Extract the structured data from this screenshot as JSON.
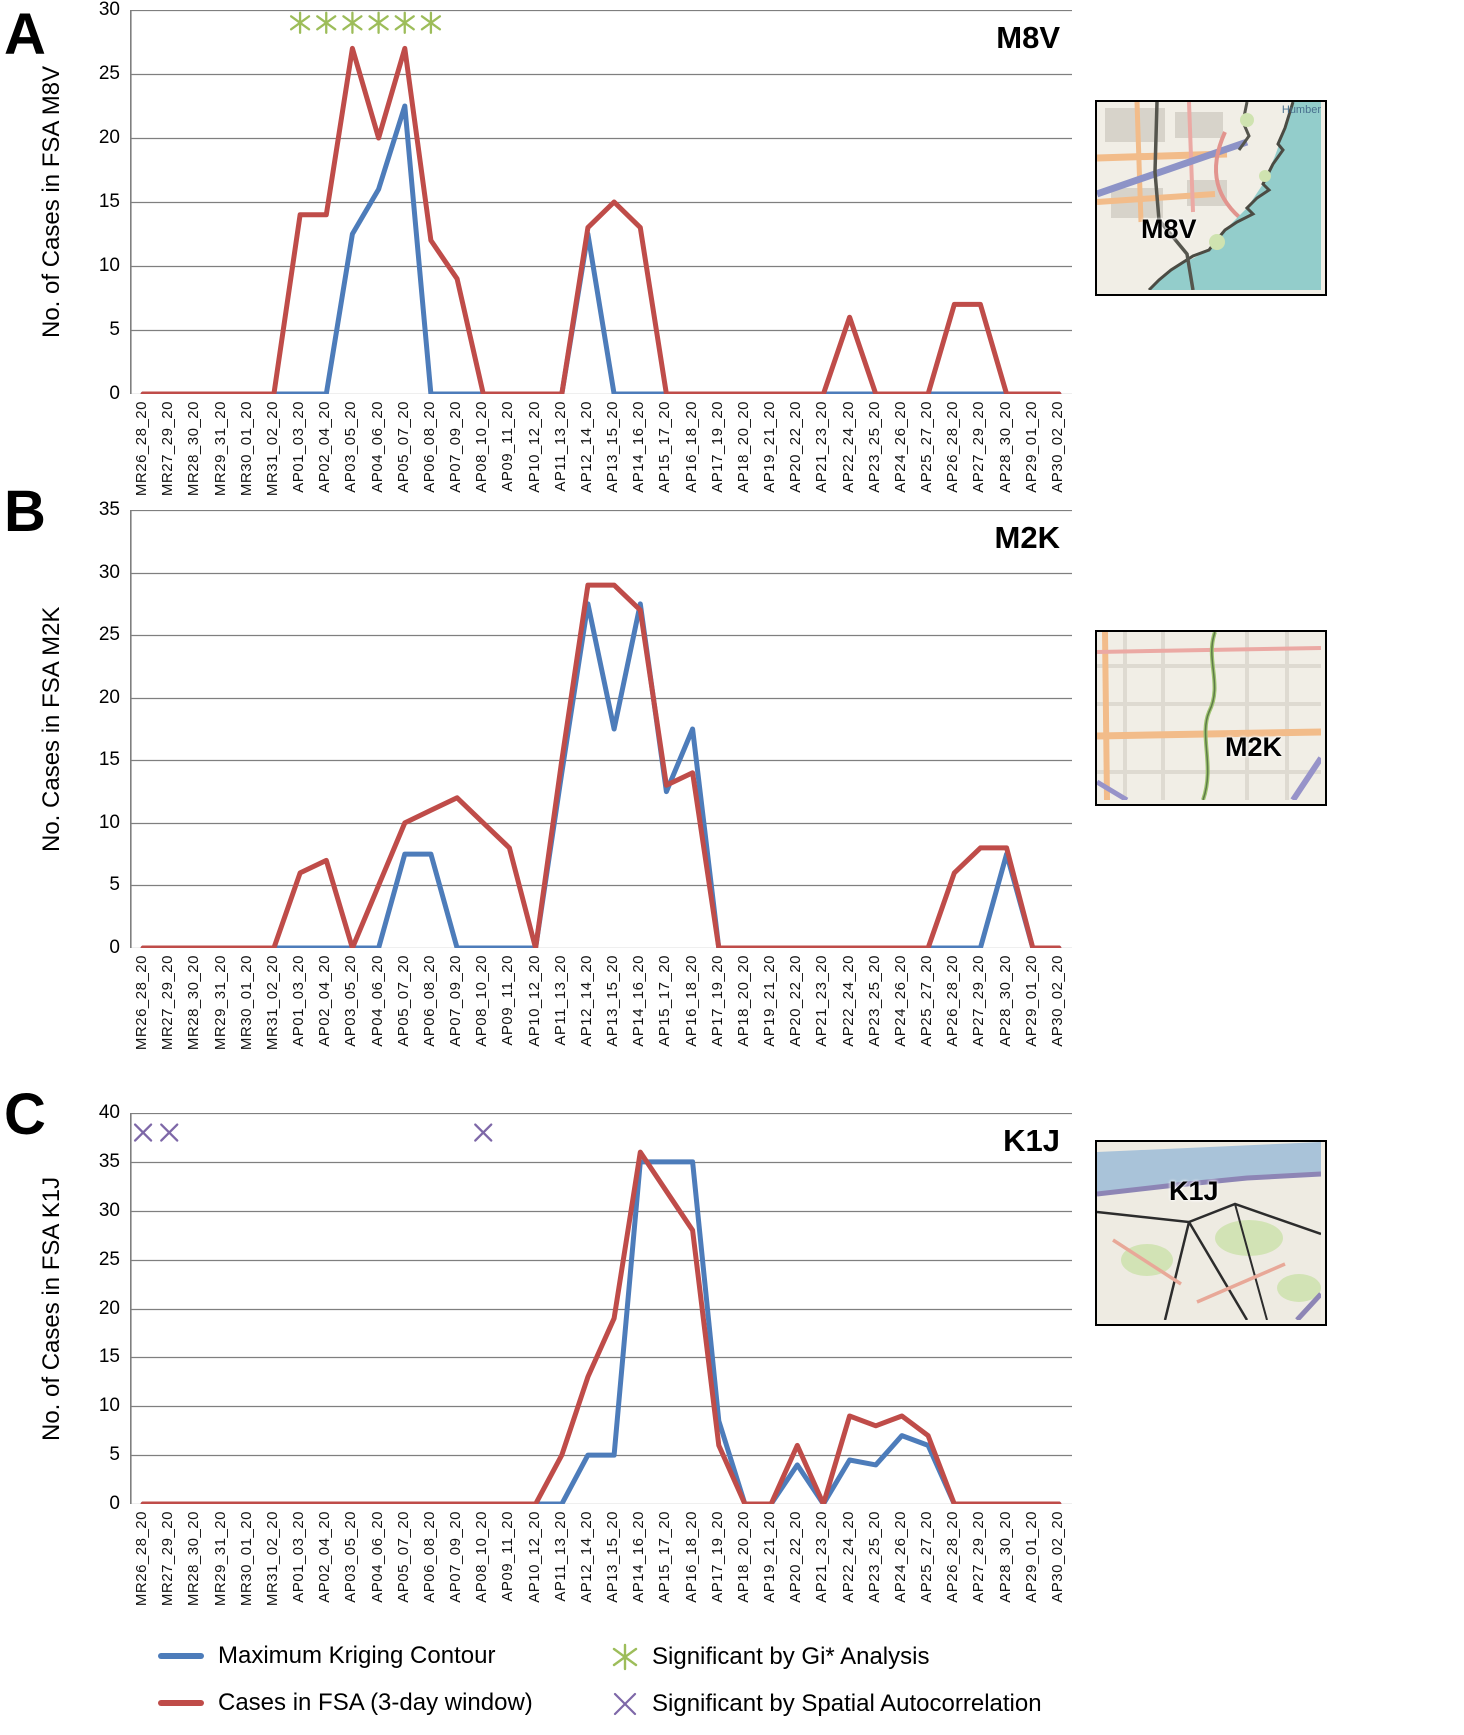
{
  "figure": {
    "panels": [
      {
        "letter": "A",
        "fsa_tag": "M8V",
        "ylabel": "No. of Cases in FSA M8V"
      },
      {
        "letter": "B",
        "fsa_tag": "M2K",
        "ylabel": "No. Cases in FSA M2K"
      },
      {
        "letter": "C",
        "fsa_tag": "K1J",
        "ylabel": "No. of Cases in FSA K1J"
      }
    ]
  },
  "colors": {
    "kriging_blue": "#4d7cba",
    "cases_red": "#bf4c49",
    "gi_star_green": "#9dbd5a",
    "spatial_x_purple": "#7e68a8",
    "gridline_gray": "#7f7f7f"
  },
  "legend": {
    "items": [
      {
        "swatch": "blue-line",
        "label": "Maximum Kriging Contour"
      },
      {
        "swatch": "gi-star",
        "label": "Significant by Gi* Analysis"
      },
      {
        "swatch": "red-line",
        "label": "Cases in FSA (3-day window)"
      },
      {
        "swatch": "x-mark",
        "label": "Significant by Spatial Autocorrelation"
      }
    ]
  },
  "maps": [
    {
      "label": "M8V",
      "water_label": "Humber"
    },
    {
      "label": "M2K",
      "water_label": ""
    },
    {
      "label": "K1J",
      "water_label": ""
    }
  ],
  "chart_data": [
    {
      "type": "line",
      "panel": "A",
      "title": "M8V",
      "ylabel": "No. of Cases in FSA M8V",
      "ylim": [
        0,
        30
      ],
      "ytick_step": 5,
      "grid": true,
      "categories": [
        "MR26_28_20",
        "MR27_29_20",
        "MR28_30_20",
        "MR29_31_20",
        "MR30_01_20",
        "MR31_02_20",
        "AP01_03_20",
        "AP02_04_20",
        "AP03_05_20",
        "AP04_06_20",
        "AP05_07_20",
        "AP06_08_20",
        "AP07_09_20",
        "AP08_10_20",
        "AP09_11_20",
        "AP10_12_20",
        "AP11_13_20",
        "AP12_14_20",
        "AP13_15_20",
        "AP14_16_20",
        "AP15_17_20",
        "AP16_18_20",
        "AP17_19_20",
        "AP18_20_20",
        "AP19_21_20",
        "AP20_22_20",
        "AP21_23_20",
        "AP22_24_20",
        "AP23_25_20",
        "AP24_26_20",
        "AP25_27_20",
        "AP26_28_20",
        "AP27_29_20",
        "AP28_30_20",
        "AP29_01_20",
        "AP30_02_20"
      ],
      "series": [
        {
          "name": "Maximum Kriging Contour",
          "color": "#4d7cba",
          "values": [
            0,
            0,
            0,
            0,
            0,
            0,
            0,
            0,
            12.5,
            16,
            22.5,
            0,
            0,
            0,
            0,
            0,
            0,
            12.5,
            0,
            0,
            0,
            0,
            0,
            0,
            0,
            0,
            0,
            0,
            0,
            0,
            0,
            0,
            0,
            0,
            0,
            0
          ]
        },
        {
          "name": "Cases in FSA (3-day window)",
          "color": "#bf4c49",
          "values": [
            0,
            0,
            0,
            0,
            0,
            0,
            14,
            14,
            27,
            20,
            27,
            12,
            9,
            0,
            0,
            0,
            0,
            13,
            15,
            13,
            0,
            0,
            0,
            0,
            0,
            0,
            0,
            6,
            0,
            0,
            0,
            7,
            7,
            0,
            0,
            0
          ]
        }
      ],
      "markers": [
        {
          "type": "gi-star",
          "meaning": "Significant by Gi* Analysis",
          "color": "#9dbd5a",
          "value": 29,
          "category_indices": [
            6,
            7,
            8,
            9,
            10,
            11
          ]
        }
      ]
    },
    {
      "type": "line",
      "panel": "B",
      "title": "M2K",
      "ylabel": "No. Cases in FSA M2K",
      "ylim": [
        0,
        35
      ],
      "ytick_step": 5,
      "grid": true,
      "categories": [
        "MR26_28_20",
        "MR27_29_20",
        "MR28_30_20",
        "MR29_31_20",
        "MR30_01_20",
        "MR31_02_20",
        "AP01_03_20",
        "AP02_04_20",
        "AP03_05_20",
        "AP04_06_20",
        "AP05_07_20",
        "AP06_08_20",
        "AP07_09_20",
        "AP08_10_20",
        "AP09_11_20",
        "AP10_12_20",
        "AP11_13_20",
        "AP12_14_20",
        "AP13_15_20",
        "AP14_16_20",
        "AP15_17_20",
        "AP16_18_20",
        "AP17_19_20",
        "AP18_20_20",
        "AP19_21_20",
        "AP20_22_20",
        "AP21_23_20",
        "AP22_24_20",
        "AP23_25_20",
        "AP24_26_20",
        "AP25_27_20",
        "AP26_28_20",
        "AP27_29_20",
        "AP28_30_20",
        "AP29_01_20",
        "AP30_02_20"
      ],
      "series": [
        {
          "name": "Maximum Kriging Contour",
          "color": "#4d7cba",
          "values": [
            0,
            0,
            0,
            0,
            0,
            0,
            0,
            0,
            0,
            0,
            7.5,
            7.5,
            0,
            0,
            0,
            0,
            14,
            27.5,
            17.5,
            27.5,
            12.5,
            17.5,
            0,
            0,
            0,
            0,
            0,
            0,
            0,
            0,
            0,
            0,
            0,
            7.5,
            0,
            0
          ]
        },
        {
          "name": "Cases in FSA (3-day window)",
          "color": "#bf4c49",
          "values": [
            0,
            0,
            0,
            0,
            0,
            0,
            6,
            7,
            0,
            5,
            10,
            11,
            12,
            10,
            8,
            0,
            15,
            29,
            29,
            27,
            13,
            14,
            0,
            0,
            0,
            0,
            0,
            0,
            0,
            0,
            0,
            6,
            8,
            8,
            0,
            0
          ]
        }
      ],
      "markers": []
    },
    {
      "type": "line",
      "panel": "C",
      "title": "K1J",
      "ylabel": "No. of Cases in FSA K1J",
      "ylim": [
        0,
        40
      ],
      "ytick_step": 5,
      "grid": true,
      "categories": [
        "MR26_28_20",
        "MR27_29_20",
        "MR28_30_20",
        "MR29_31_20",
        "MR30_01_20",
        "MR31_02_20",
        "AP01_03_20",
        "AP02_04_20",
        "AP03_05_20",
        "AP04_06_20",
        "AP05_07_20",
        "AP06_08_20",
        "AP07_09_20",
        "AP08_10_20",
        "AP09_11_20",
        "AP10_12_20",
        "AP11_13_20",
        "AP12_14_20",
        "AP13_15_20",
        "AP14_16_20",
        "AP15_17_20",
        "AP16_18_20",
        "AP17_19_20",
        "AP18_20_20",
        "AP19_21_20",
        "AP20_22_20",
        "AP21_23_20",
        "AP22_24_20",
        "AP23_25_20",
        "AP24_26_20",
        "AP25_27_20",
        "AP26_28_20",
        "AP27_29_20",
        "AP28_30_20",
        "AP29_01_20",
        "AP30_02_20"
      ],
      "series": [
        {
          "name": "Maximum Kriging Contour",
          "color": "#4d7cba",
          "values": [
            0,
            0,
            0,
            0,
            0,
            0,
            0,
            0,
            0,
            0,
            0,
            0,
            0,
            0,
            0,
            0,
            0,
            5,
            5,
            35,
            35,
            35,
            8.5,
            0,
            0,
            4,
            0,
            4.5,
            4,
            7,
            6,
            0,
            0,
            0,
            0,
            0
          ]
        },
        {
          "name": "Cases in FSA (3-day window)",
          "color": "#bf4c49",
          "values": [
            0,
            0,
            0,
            0,
            0,
            0,
            0,
            0,
            0,
            0,
            0,
            0,
            0,
            0,
            0,
            0,
            5,
            13,
            19,
            36,
            32,
            28,
            6,
            0,
            0,
            6,
            0,
            9,
            8,
            9,
            7,
            0,
            0,
            0,
            0,
            0
          ]
        }
      ],
      "markers": [
        {
          "type": "x-mark",
          "meaning": "Significant by Spatial Autocorrelation",
          "color": "#7e68a8",
          "value": 38,
          "category_indices": [
            0,
            1,
            13
          ]
        }
      ]
    }
  ]
}
